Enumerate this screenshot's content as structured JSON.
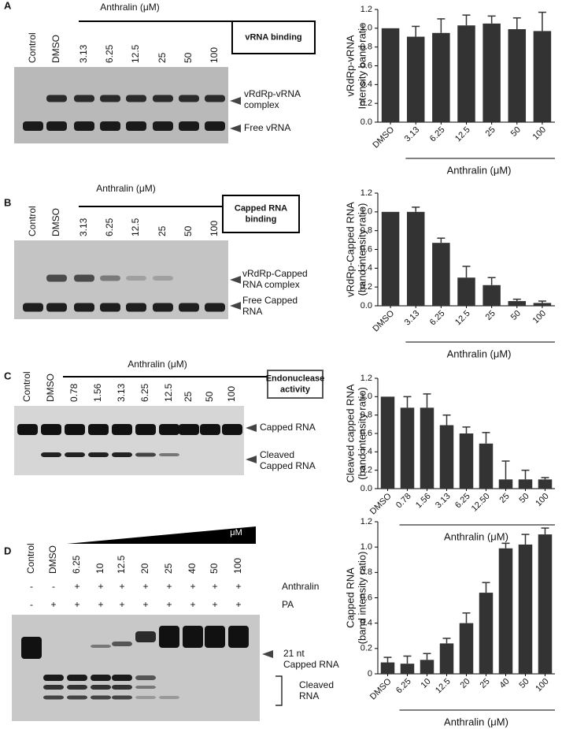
{
  "gels": [
    {
      "letter": "A",
      "lanes": [
        "Control",
        "DMSO",
        "3.13",
        "6.25",
        "12.5",
        "25",
        "50",
        "100"
      ],
      "header": "Anthralin (μM)",
      "box": [
        "vRNA   binding"
      ],
      "upper_label": [
        "vRdRp-vRNA",
        "complex"
      ],
      "lower_label": [
        "Free vRNA"
      ]
    },
    {
      "letter": "B",
      "lanes": [
        "Control",
        "DMSO",
        "3.13",
        "6.25",
        "12.5",
        "25",
        "50",
        "100"
      ],
      "header": "Anthralin (μM)",
      "box": [
        "Capped RNA",
        "binding"
      ],
      "upper_label": [
        "vRdRp-Capped",
        "RNA complex"
      ],
      "lower_label": [
        "Free Capped",
        "RNA"
      ]
    },
    {
      "letter": "C",
      "lanes": [
        "Control",
        "DMSO",
        "0.78",
        "1.56",
        "3.13",
        "6.25",
        "12.5",
        "25",
        "50",
        "100"
      ],
      "header": "Anthralin (μM)",
      "box": [
        "Endonuclease",
        "activity"
      ],
      "upper_label": [
        "Capped RNA"
      ],
      "lower_label": [
        "Cleaved",
        "Capped RNA"
      ]
    },
    {
      "letter": "D",
      "lanes": [
        "Control",
        "DMSO",
        "6.25",
        "10",
        "12.5",
        "20",
        "25",
        "40",
        "50",
        "100"
      ],
      "header": "μM",
      "rows": [
        {
          "name": "Anthralin",
          "signs": [
            "-",
            "-",
            "+",
            "+",
            "+",
            "+",
            "+",
            "+",
            "+",
            "+"
          ]
        },
        {
          "name": "PA",
          "signs": [
            "-",
            "+",
            "+",
            "+",
            "+",
            "+",
            "+",
            "+",
            "+",
            "+"
          ]
        }
      ],
      "upper_label": [
        "21 nt",
        "Capped RNA"
      ],
      "lower_label": [
        "Cleaved",
        "RNA"
      ]
    }
  ],
  "chart_data": [
    {
      "type": "bar",
      "ylabel": [
        "vRdRp-vRNA",
        "Intensity band ratio"
      ],
      "xlabel": "Anthralin (μM)",
      "color": "#333333",
      "categories": [
        "DMSO",
        "3.13",
        "6.25",
        "12.5",
        "25",
        "50",
        "100"
      ],
      "values": [
        1.0,
        0.91,
        0.95,
        1.03,
        1.05,
        0.99,
        0.97
      ],
      "errors": [
        null,
        0.11,
        0.15,
        0.11,
        0.08,
        0.12,
        0.2
      ],
      "ylim": [
        0,
        1.2
      ],
      "yticks": [
        {
          "value": 0,
          "label": "0.0"
        },
        0.2,
        0.4,
        0.6,
        0.8,
        {
          "value": 1,
          "label": "1.0"
        },
        1.2
      ]
    },
    {
      "type": "bar",
      "ylabel": [
        "vRdRp-Capped RNA",
        "(band intensity ratio)"
      ],
      "xlabel": "Anthralin (μM)",
      "color": "#333333",
      "categories": [
        "DMSO",
        "3.13",
        "6.25",
        "12.5",
        "25",
        "50",
        "100"
      ],
      "values": [
        1.0,
        1.0,
        0.67,
        0.3,
        0.22,
        0.05,
        0.03
      ],
      "errors": [
        null,
        0.05,
        0.05,
        0.12,
        0.08,
        0.02,
        0.02
      ],
      "ylim": [
        0,
        1.2
      ],
      "yticks": [
        {
          "value": 0,
          "label": "0.0"
        },
        0.2,
        0.4,
        0.6,
        0.8,
        {
          "value": 1,
          "label": "1.0"
        },
        1.2
      ]
    },
    {
      "type": "bar",
      "ylabel": [
        "Cleaved capped RNA",
        "(band intensity ratio)"
      ],
      "xlabel": "Anthralin (μM)",
      "color": "#333333",
      "categories": [
        "DMSO",
        "0.78",
        "1.56",
        "3.13",
        "6.25",
        "12.50",
        "25",
        "50",
        "100"
      ],
      "values": [
        1.0,
        0.88,
        0.88,
        0.69,
        0.6,
        0.49,
        0.1,
        0.1,
        0.1
      ],
      "errors": [
        null,
        0.12,
        0.15,
        0.11,
        0.07,
        0.12,
        0.2,
        0.1,
        0.02
      ],
      "ylim": [
        0,
        1.2
      ],
      "yticks": [
        {
          "value": 0,
          "label": "0.0"
        },
        0.2,
        0.4,
        0.6,
        0.8,
        {
          "value": 1,
          "label": "1.0"
        },
        1.2
      ]
    },
    {
      "type": "bar",
      "ylabel": [
        "Capped RNA",
        "(band intensity ratio)"
      ],
      "xlabel": "Anthralin (μM)",
      "color": "#333333",
      "categories": [
        "DMSO",
        "6.25",
        "10",
        "12.5",
        "20",
        "25",
        "40",
        "50",
        "100"
      ],
      "values": [
        0.09,
        0.08,
        0.11,
        0.24,
        0.4,
        0.64,
        0.99,
        1.02,
        1.1
      ],
      "errors": [
        0.04,
        0.06,
        0.05,
        0.04,
        0.08,
        0.08,
        0.04,
        0.08,
        0.05
      ],
      "ylim": [
        0,
        1.2
      ],
      "yticks": [
        0,
        0.2,
        0.4,
        0.6,
        0.8,
        {
          "value": 1,
          "label": "1.0"
        },
        1.2
      ]
    }
  ]
}
